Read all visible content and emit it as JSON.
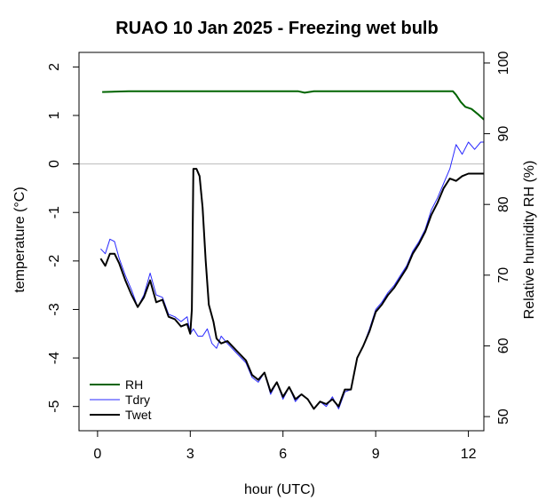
{
  "chart_data": {
    "type": "line",
    "title": "RUAO 10 Jan 2025 - Freezing wet bulb",
    "xlabel": "hour (UTC)",
    "ylabel_left": "temperature (°C)",
    "ylabel_right": "Relative humidity RH (%)",
    "xlim": [
      -0.6,
      12.5
    ],
    "ylim_left": [
      -5.5,
      2.3
    ],
    "ylim_right": [
      48,
      101.5
    ],
    "x_ticks": [
      0,
      3,
      6,
      9,
      12
    ],
    "y_ticks_left": [
      2,
      1,
      0,
      -1,
      -2,
      -3,
      -4,
      -5
    ],
    "y_ticks_right": [
      100,
      90,
      80,
      70,
      60,
      50
    ],
    "reference_line": {
      "y": 0,
      "color": "#bbbbbb"
    },
    "legend_position": "bottom-left",
    "series": [
      {
        "name": "RH",
        "axis": "right",
        "color": "#006400",
        "width": 2,
        "x": [
          0.15,
          1,
          2,
          3,
          4,
          5,
          6,
          6.5,
          6.7,
          7,
          8,
          9,
          10,
          11,
          11.3,
          11.5,
          11.6,
          11.75,
          11.9,
          12.1,
          12.3,
          12.5
        ],
        "y": [
          95.9,
          96,
          96,
          96,
          96,
          96,
          96,
          96,
          95.8,
          96,
          96,
          96,
          96,
          96,
          96,
          96,
          95.5,
          94.5,
          93.8,
          93.5,
          92.8,
          92
        ]
      },
      {
        "name": "Tdry",
        "axis": "left",
        "color": "#2a2aff",
        "width": 1,
        "x": [
          0.1,
          0.25,
          0.4,
          0.55,
          0.7,
          0.9,
          1.1,
          1.3,
          1.5,
          1.7,
          1.9,
          2.1,
          2.3,
          2.5,
          2.7,
          2.9,
          3.0,
          3.1,
          3.25,
          3.4,
          3.55,
          3.7,
          3.85,
          4.0,
          4.2,
          4.5,
          4.8,
          5.0,
          5.2,
          5.4,
          5.6,
          5.8,
          6.0,
          6.2,
          6.4,
          6.6,
          6.8,
          7.0,
          7.2,
          7.4,
          7.6,
          7.8,
          8.0,
          8.2,
          8.4,
          8.6,
          8.8,
          9.0,
          9.2,
          9.4,
          9.6,
          9.8,
          10.0,
          10.2,
          10.4,
          10.6,
          10.8,
          11.0,
          11.2,
          11.4,
          11.6,
          11.8,
          12.0,
          12.2,
          12.4,
          12.5
        ],
        "y": [
          -1.75,
          -1.85,
          -1.55,
          -1.6,
          -1.95,
          -2.3,
          -2.6,
          -2.95,
          -2.7,
          -2.25,
          -2.7,
          -2.75,
          -3.1,
          -3.15,
          -3.25,
          -3.15,
          -3.5,
          -3.4,
          -3.55,
          -3.55,
          -3.4,
          -3.7,
          -3.8,
          -3.55,
          -3.7,
          -3.9,
          -4.1,
          -4.4,
          -4.5,
          -4.3,
          -4.75,
          -4.5,
          -4.85,
          -4.6,
          -4.9,
          -4.75,
          -4.85,
          -5.05,
          -4.9,
          -5.0,
          -4.8,
          -5.05,
          -4.7,
          -4.65,
          -4.0,
          -3.75,
          -3.4,
          -3.0,
          -2.85,
          -2.65,
          -2.5,
          -2.3,
          -2.1,
          -1.8,
          -1.6,
          -1.35,
          -0.95,
          -0.7,
          -0.4,
          -0.1,
          0.4,
          0.2,
          0.45,
          0.3,
          0.45,
          0.45
        ]
      },
      {
        "name": "Twet",
        "axis": "left",
        "color": "#000000",
        "width": 2,
        "x": [
          0.1,
          0.25,
          0.4,
          0.55,
          0.7,
          0.9,
          1.1,
          1.3,
          1.5,
          1.7,
          1.9,
          2.1,
          2.3,
          2.5,
          2.7,
          2.9,
          3.0,
          3.05,
          3.1,
          3.2,
          3.3,
          3.4,
          3.5,
          3.6,
          3.75,
          3.85,
          4.0,
          4.2,
          4.5,
          4.8,
          5.0,
          5.2,
          5.4,
          5.6,
          5.8,
          6.0,
          6.2,
          6.4,
          6.6,
          6.8,
          7.0,
          7.2,
          7.4,
          7.6,
          7.8,
          8.0,
          8.2,
          8.4,
          8.6,
          8.8,
          9.0,
          9.2,
          9.4,
          9.6,
          9.8,
          10.0,
          10.2,
          10.4,
          10.6,
          10.8,
          11.0,
          11.2,
          11.4,
          11.6,
          11.8,
          12.0,
          12.2,
          12.4,
          12.5
        ],
        "y": [
          -1.95,
          -2.1,
          -1.85,
          -1.85,
          -2.05,
          -2.4,
          -2.7,
          -2.95,
          -2.75,
          -2.4,
          -2.85,
          -2.8,
          -3.15,
          -3.2,
          -3.35,
          -3.3,
          -3.5,
          -3.0,
          -0.1,
          -0.1,
          -0.25,
          -0.9,
          -2.0,
          -2.9,
          -3.25,
          -3.6,
          -3.7,
          -3.65,
          -3.85,
          -4.05,
          -4.35,
          -4.45,
          -4.3,
          -4.7,
          -4.5,
          -4.8,
          -4.6,
          -4.85,
          -4.75,
          -4.85,
          -5.05,
          -4.9,
          -4.95,
          -4.85,
          -5.0,
          -4.65,
          -4.65,
          -4.0,
          -3.75,
          -3.45,
          -3.05,
          -2.9,
          -2.7,
          -2.55,
          -2.35,
          -2.15,
          -1.85,
          -1.65,
          -1.4,
          -1.05,
          -0.8,
          -0.5,
          -0.3,
          -0.35,
          -0.25,
          -0.2,
          -0.2,
          -0.2,
          -0.2
        ]
      }
    ]
  }
}
